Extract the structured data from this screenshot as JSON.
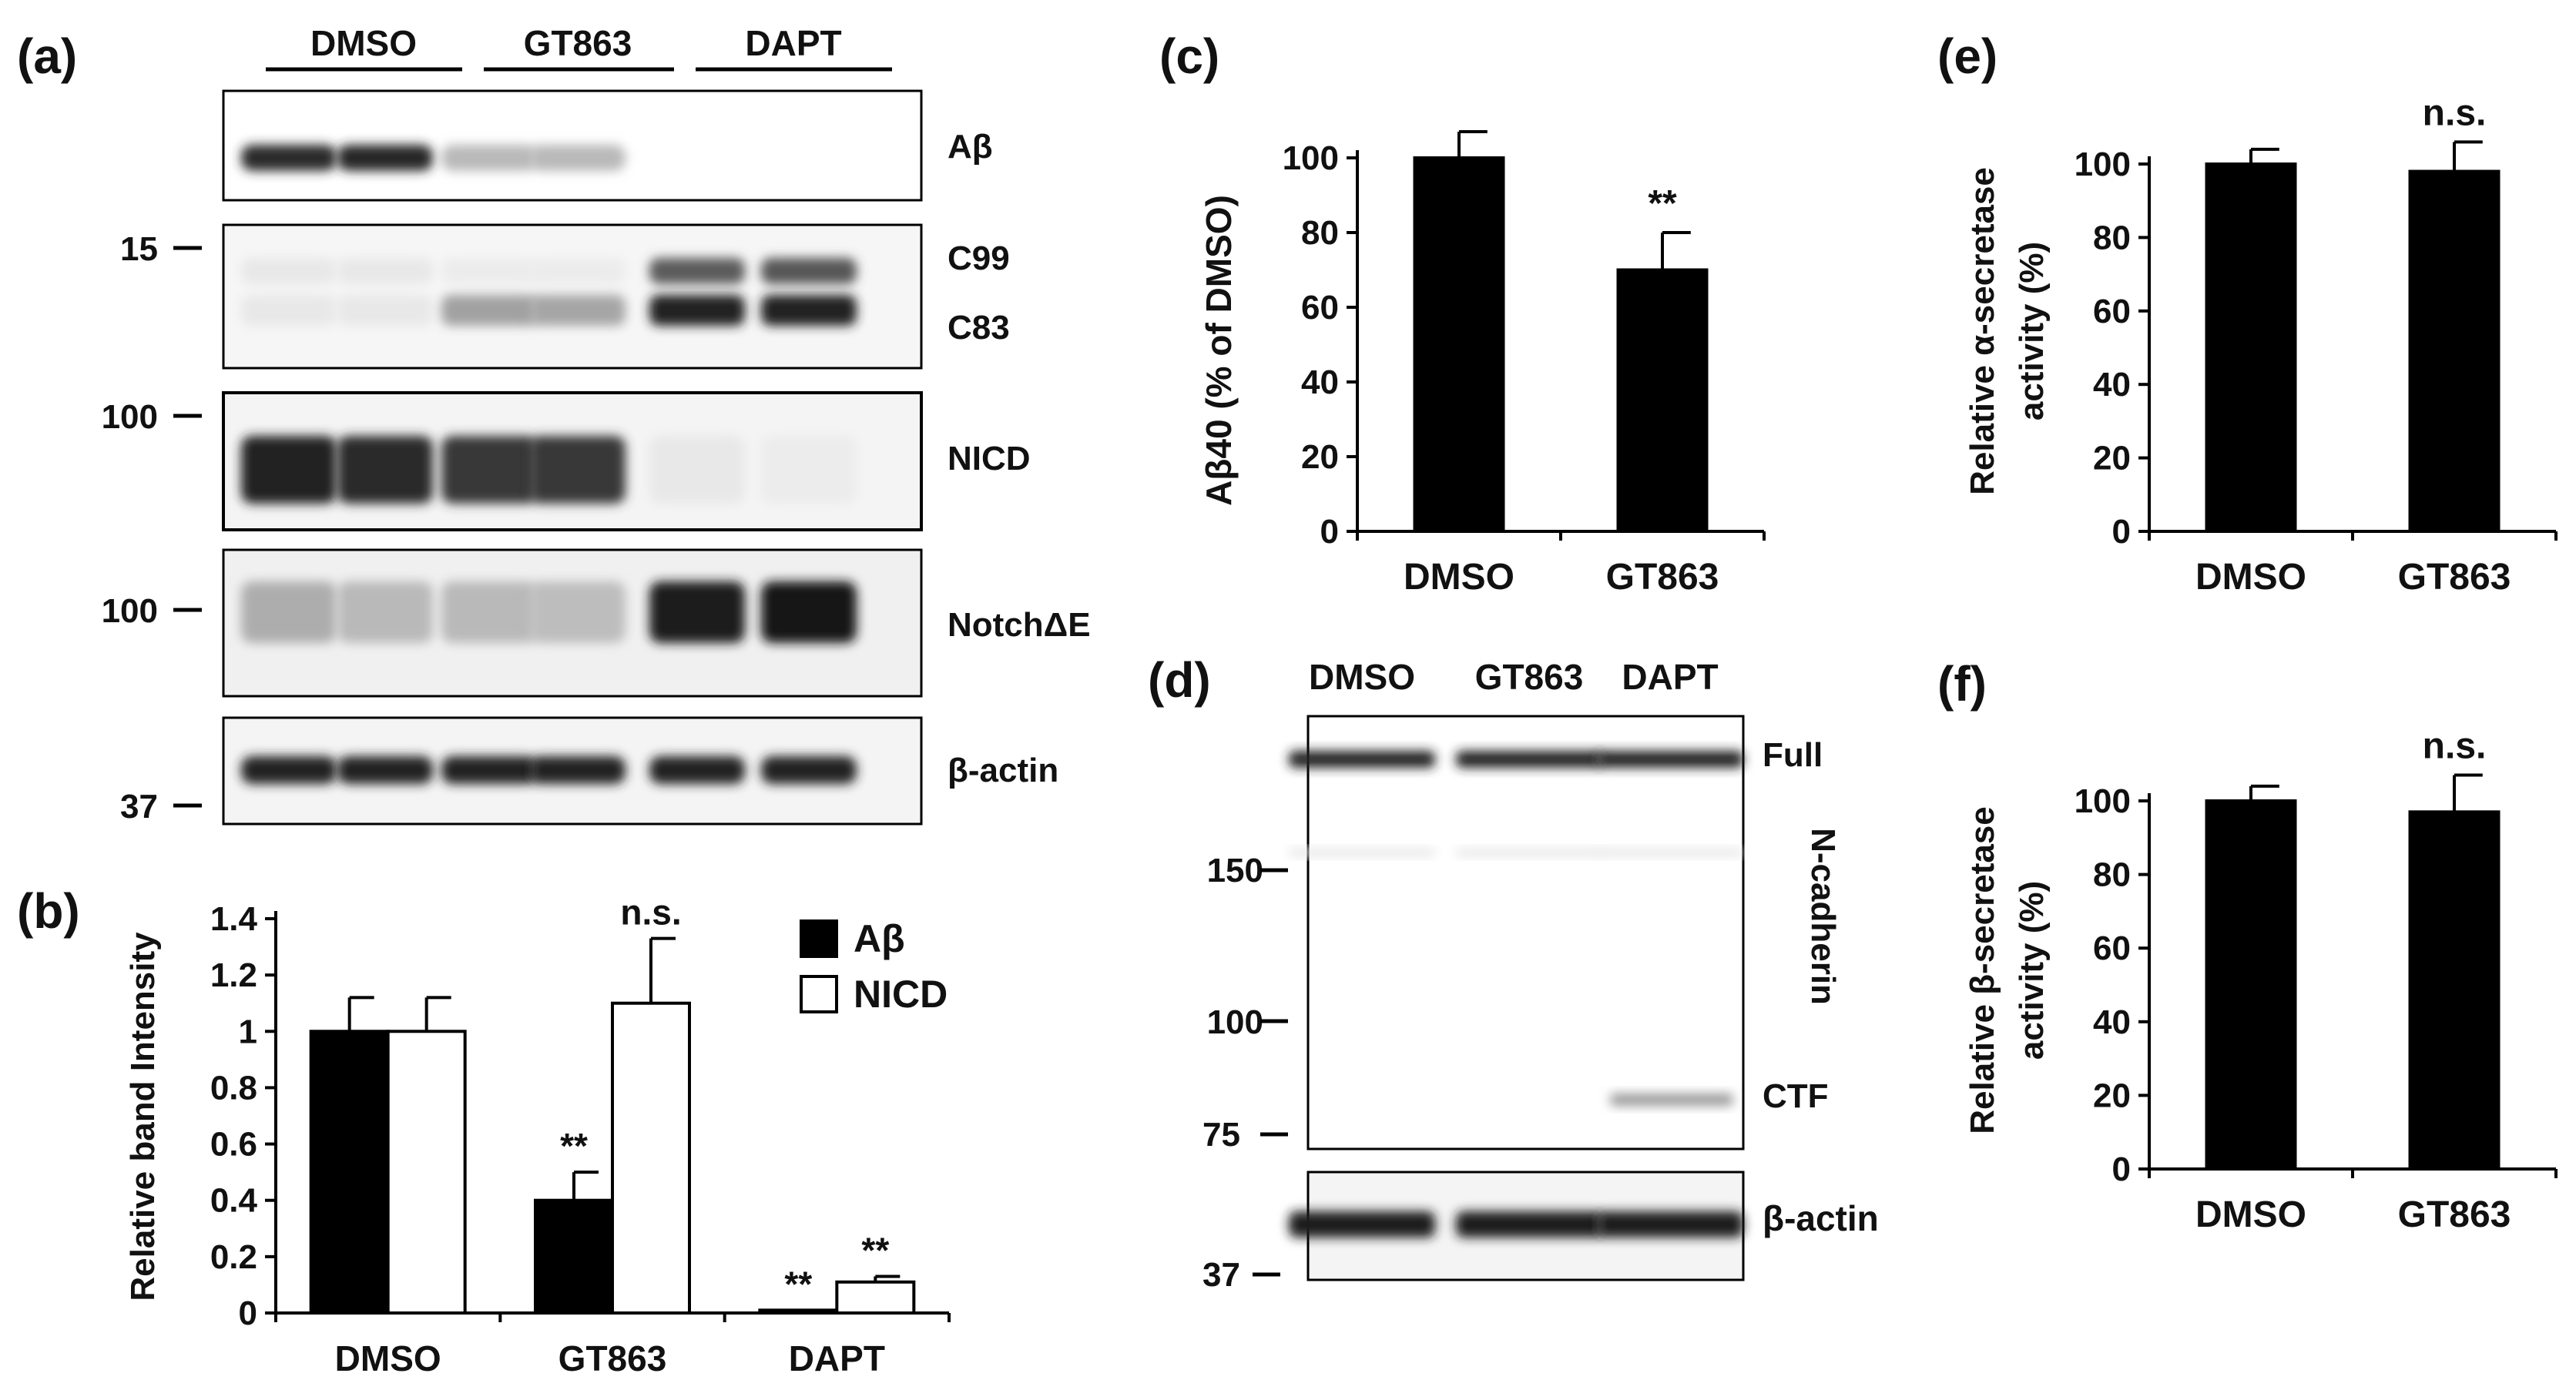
{
  "panel_a": {
    "letter": "(a)",
    "groups": [
      "DMSO",
      "GT863",
      "DAPT"
    ],
    "rows": [
      {
        "label": "Aβ",
        "intensities": [
          0.9,
          0.92,
          0.3,
          0.3,
          0.0,
          0.0
        ]
      },
      {
        "label": "C99 / C83",
        "labels": [
          "C99",
          "C83"
        ],
        "c99": [
          0.1,
          0.1,
          0.08,
          0.08,
          0.7,
          0.72
        ],
        "c83": [
          0.1,
          0.1,
          0.4,
          0.38,
          0.95,
          0.95
        ]
      },
      {
        "label": "NICD",
        "intensities": [
          0.95,
          0.9,
          0.85,
          0.85,
          0.1,
          0.08
        ]
      },
      {
        "label": "NotchΔE",
        "intensities": [
          0.35,
          0.3,
          0.3,
          0.28,
          0.97,
          0.98
        ]
      },
      {
        "label": "β-actin",
        "intensities": [
          0.95,
          0.95,
          0.95,
          0.95,
          0.95,
          0.95
        ]
      }
    ],
    "markers": [
      "15",
      "100",
      "100",
      "37"
    ]
  },
  "panel_b": {
    "letter": "(b)",
    "chart_data": {
      "type": "bar",
      "categories": [
        "DMSO",
        "GT863",
        "DAPT"
      ],
      "series": [
        {
          "name": "Aβ",
          "color": "#000000",
          "values": [
            1.0,
            0.4,
            0.01
          ],
          "errors": [
            0.12,
            0.1,
            0.0
          ]
        },
        {
          "name": "NICD",
          "color": "#ffffff",
          "values": [
            1.0,
            1.1,
            0.11
          ],
          "errors": [
            0.12,
            0.23,
            0.02
          ]
        }
      ],
      "annotations": [
        {
          "category": 1,
          "series": 0,
          "text": "**"
        },
        {
          "category": 1,
          "series": 1,
          "text": "n.s."
        },
        {
          "category": 2,
          "series": 0,
          "text": "**"
        },
        {
          "category": 2,
          "series": 1,
          "text": "**"
        }
      ],
      "ylabel": "Relative band Intensity",
      "ylim": [
        0,
        1.4
      ],
      "yticks": [
        "0",
        "0.2",
        "0.4",
        "0.6",
        "0.8",
        "1",
        "1.2",
        "1.4"
      ],
      "legend": "top-right"
    }
  },
  "panel_c": {
    "letter": "(c)",
    "chart_data": {
      "type": "bar",
      "categories": [
        "DMSO",
        "GT863"
      ],
      "values": [
        100,
        70
      ],
      "errors": [
        7,
        10
      ],
      "annotations": [
        "",
        "**"
      ],
      "ylabel": "Aβ40 (% of DMSO)",
      "ylim": [
        0,
        100
      ],
      "yticks": [
        "0",
        "20",
        "40",
        "60",
        "80",
        "100"
      ]
    }
  },
  "panel_d": {
    "letter": "(d)",
    "lanes": [
      "DMSO",
      "GT863",
      "DAPT"
    ],
    "labels": [
      "Full",
      "N-cadherin",
      "CTF",
      "β-actin"
    ],
    "markers": [
      "150",
      "100",
      "75",
      "37"
    ]
  },
  "panel_e": {
    "letter": "(e)",
    "chart_data": {
      "type": "bar",
      "categories": [
        "DMSO",
        "GT863"
      ],
      "values": [
        100,
        98
      ],
      "errors": [
        4,
        8
      ],
      "annotations": [
        "",
        "n.s."
      ],
      "ylabel": [
        "Relative α-secretase",
        "activity (%)"
      ],
      "ylim": [
        0,
        100
      ],
      "yticks": [
        "0",
        "20",
        "40",
        "60",
        "80",
        "100"
      ]
    }
  },
  "panel_f": {
    "letter": "(f)",
    "chart_data": {
      "type": "bar",
      "categories": [
        "DMSO",
        "GT863"
      ],
      "values": [
        100,
        97
      ],
      "errors": [
        4,
        10
      ],
      "annotations": [
        "",
        "n.s."
      ],
      "ylabel": [
        "Relative β-secretase",
        "activity (%)"
      ],
      "ylim": [
        0,
        100
      ],
      "yticks": [
        "0",
        "20",
        "40",
        "60",
        "80",
        "100"
      ]
    }
  }
}
